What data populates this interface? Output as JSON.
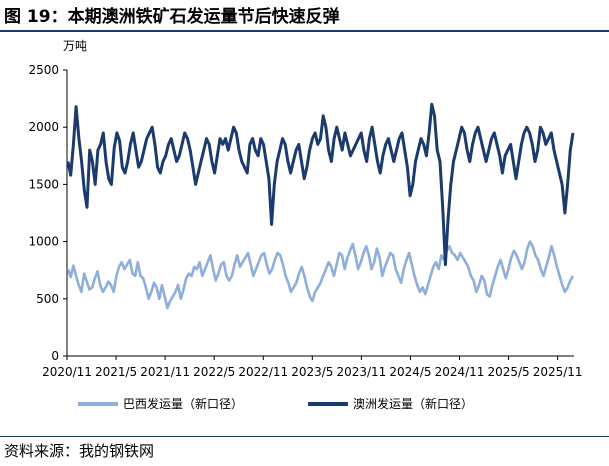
{
  "figure": {
    "title": "图 19：本期澳洲铁矿石发运量节后快速反弹",
    "source": "资料来源：我的钢铁网"
  },
  "chart_data": {
    "type": "line",
    "unit_label": "万吨",
    "ylim": [
      0,
      2500
    ],
    "yticks": [
      0,
      500,
      1000,
      1500,
      2000,
      2500
    ],
    "xtick_labels": [
      "2020/11",
      "2021/5",
      "2021/11",
      "2022/5",
      "2022/11",
      "2023/5",
      "2023/11",
      "2024/5",
      "2024/11",
      "2025/5",
      "2025/11"
    ],
    "x_start": "2020/11",
    "x_end": "2026/1",
    "grid": false,
    "legend_position": "bottom",
    "series": [
      {
        "name": "巴西发运量（新口径）",
        "color": "#8eaedb",
        "values": [
          760,
          690,
          790,
          700,
          620,
          560,
          720,
          650,
          580,
          600,
          680,
          740,
          620,
          560,
          600,
          650,
          620,
          560,
          700,
          780,
          820,
          760,
          800,
          840,
          720,
          700,
          820,
          700,
          680,
          600,
          500,
          560,
          640,
          600,
          500,
          620,
          520,
          420,
          480,
          520,
          560,
          620,
          500,
          580,
          680,
          720,
          700,
          780,
          760,
          820,
          700,
          760,
          820,
          880,
          760,
          660,
          720,
          800,
          820,
          700,
          660,
          700,
          800,
          880,
          780,
          820,
          860,
          900,
          800,
          700,
          760,
          820,
          880,
          900,
          800,
          720,
          760,
          840,
          900,
          880,
          800,
          700,
          640,
          560,
          600,
          640,
          720,
          780,
          700,
          600,
          520,
          480,
          560,
          600,
          640,
          700,
          760,
          820,
          780,
          700,
          800,
          900,
          880,
          760,
          860,
          920,
          980,
          880,
          760,
          820,
          900,
          960,
          880,
          760,
          820,
          940,
          860,
          700,
          780,
          840,
          900,
          880,
          760,
          700,
          640,
          760,
          840,
          900,
          800,
          700,
          620,
          560,
          600,
          540,
          620,
          700,
          780,
          820,
          760,
          880,
          840,
          920,
          960,
          900,
          880,
          840,
          900,
          860,
          820,
          780,
          700,
          660,
          560,
          620,
          700,
          660,
          540,
          520,
          620,
          700,
          780,
          840,
          760,
          680,
          760,
          860,
          920,
          880,
          820,
          760,
          820,
          940,
          1000,
          960,
          880,
          840,
          760,
          700,
          780,
          860,
          960,
          880,
          780,
          700,
          620,
          560,
          600,
          660,
          700
        ],
        "estimated": true
      },
      {
        "name": "澳洲发运量（新口径）",
        "color": "#1b3a6e",
        "values": [
          1700,
          1580,
          1850,
          2180,
          1900,
          1700,
          1450,
          1300,
          1800,
          1700,
          1500,
          1800,
          1850,
          1950,
          1700,
          1550,
          1500,
          1820,
          1950,
          1880,
          1650,
          1600,
          1700,
          1850,
          1950,
          1800,
          1650,
          1700,
          1800,
          1900,
          1950,
          2000,
          1850,
          1650,
          1600,
          1700,
          1750,
          1850,
          1900,
          1800,
          1700,
          1750,
          1850,
          1950,
          1900,
          1800,
          1650,
          1500,
          1600,
          1700,
          1800,
          1900,
          1850,
          1700,
          1600,
          1750,
          1900,
          1850,
          1900,
          1800,
          1900,
          2000,
          1950,
          1800,
          1700,
          1650,
          1600,
          1850,
          1900,
          1800,
          1750,
          1900,
          1850,
          1700,
          1550,
          1150,
          1500,
          1700,
          1800,
          1900,
          1850,
          1700,
          1600,
          1700,
          1800,
          1850,
          1700,
          1550,
          1650,
          1800,
          1900,
          1950,
          1850,
          1900,
          2100,
          2000,
          1800,
          1700,
          1900,
          2000,
          1900,
          1800,
          1950,
          1850,
          1750,
          1800,
          1850,
          1900,
          1950,
          1800,
          1700,
          1900,
          2000,
          1850,
          1700,
          1600,
          1750,
          1850,
          1900,
          1800,
          1700,
          1800,
          1900,
          1950,
          1800,
          1650,
          1400,
          1500,
          1700,
          1800,
          1900,
          1850,
          1750,
          1950,
          2200,
          2100,
          1800,
          1700,
          1300,
          800,
          1200,
          1500,
          1700,
          1800,
          1900,
          2000,
          1950,
          1800,
          1700,
          1850,
          1950,
          2000,
          1900,
          1800,
          1700,
          1800,
          1900,
          1950,
          1850,
          1750,
          1600,
          1750,
          1800,
          1850,
          1700,
          1550,
          1700,
          1850,
          1950,
          2000,
          1950,
          1850,
          1700,
          1800,
          2000,
          1950,
          1850,
          1900,
          1950,
          1800,
          1700,
          1600,
          1500,
          1250,
          1500,
          1800,
          1950
        ],
        "estimated": true
      }
    ]
  }
}
